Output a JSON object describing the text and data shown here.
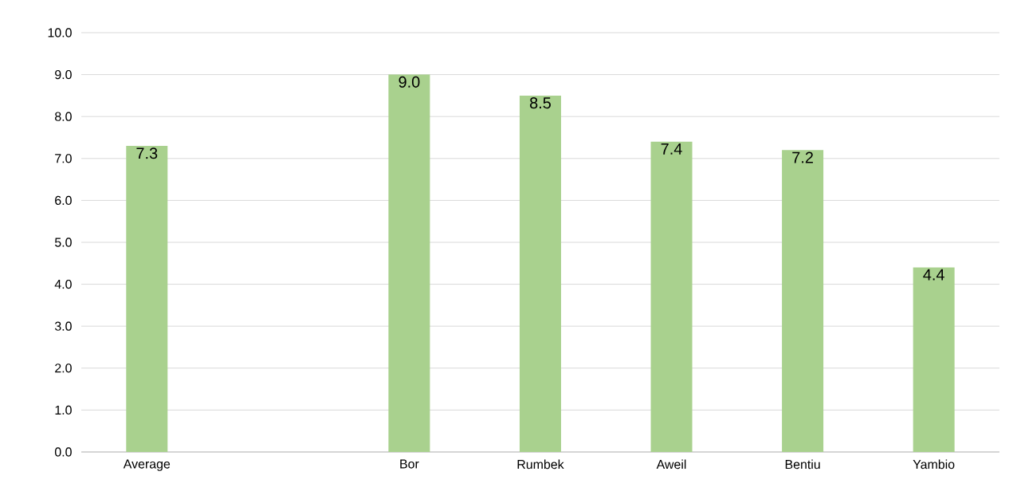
{
  "chart_data": {
    "type": "bar",
    "categories": [
      "Average",
      null,
      "Bor",
      "Rumbek",
      "Aweil",
      "Bentiu",
      "Yambio"
    ],
    "values": [
      7.3,
      null,
      9.0,
      8.5,
      7.4,
      7.2,
      4.4
    ],
    "value_labels": [
      "7.3",
      null,
      "9.0",
      "8.5",
      "7.4",
      "7.2",
      "4.4"
    ],
    "color": "#a9d18e",
    "ylim": [
      0,
      10
    ],
    "yticks": [
      {
        "value": 0,
        "label": "0.0"
      },
      {
        "value": 1,
        "label": "1.0"
      },
      {
        "value": 2,
        "label": "2.0"
      },
      {
        "value": 3,
        "label": "3.0"
      },
      {
        "value": 4,
        "label": "4.0"
      },
      {
        "value": 5,
        "label": "5.0"
      },
      {
        "value": 6,
        "label": "6.0"
      },
      {
        "value": 7,
        "label": "7.0"
      },
      {
        "value": 8,
        "label": "8.0"
      },
      {
        "value": 9,
        "label": "9.0"
      },
      {
        "value": 10,
        "label": "10.0"
      }
    ],
    "grid": "y"
  }
}
